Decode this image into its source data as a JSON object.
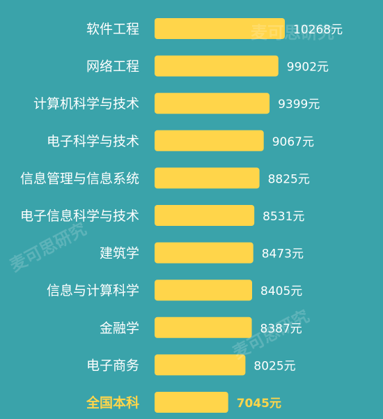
{
  "chart_data": {
    "type": "bar",
    "orientation": "horizontal",
    "categories": [
      "软件工程",
      "网络工程",
      "计算机科学与技术",
      "电子科学与技术",
      "信息管理与信息系统",
      "电子信息科学与技术",
      "建筑学",
      "信息与计算科学",
      "金融学",
      "电子商务",
      "全国本科"
    ],
    "values": [
      10268,
      9902,
      9399,
      9067,
      8825,
      8531,
      8473,
      8405,
      8387,
      8025,
      7045
    ],
    "value_labels": [
      "10268元",
      "9902元",
      "9399元",
      "9067元",
      "8825元",
      "8531元",
      "8473元",
      "8405元",
      "8387元",
      "8025元",
      "7045元"
    ],
    "highlight_category": "全国本科",
    "colors": {
      "background": "#3aa3aa",
      "bar": "#ffd54a",
      "label": "#ffffff",
      "highlight": "#ffd54a"
    }
  },
  "watermark": {
    "text": "麦可思研究"
  }
}
